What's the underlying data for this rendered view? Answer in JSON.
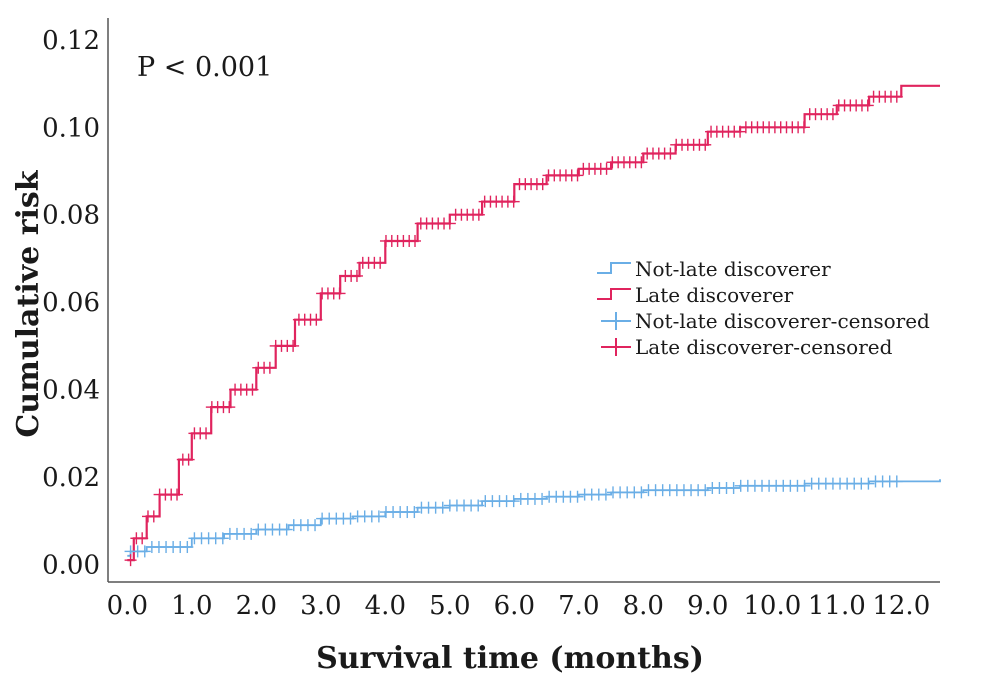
{
  "chart_data": {
    "type": "line",
    "annotation": "P < 0.001",
    "xlabel": "Survival time (months)",
    "ylabel": "Cumulative risk",
    "xlim": [
      -0.3,
      12.6
    ],
    "ylim": [
      -0.004,
      0.125
    ],
    "x_ticks": [
      0,
      1,
      2,
      3,
      4,
      5,
      6,
      7,
      8,
      9,
      10,
      11,
      12
    ],
    "x_tick_labels": [
      "0.0",
      "1.0",
      "2.0",
      "3.0",
      "4.0",
      "5.0",
      "6.0",
      "7.0",
      "8.0",
      "9.0",
      "10.0",
      "11.0",
      "12.0"
    ],
    "y_ticks": [
      0.0,
      0.02,
      0.04,
      0.06,
      0.08,
      0.1,
      0.12
    ],
    "y_tick_labels": [
      "0.00",
      "0.02",
      "0.04",
      "0.06",
      "0.08",
      "0.10",
      "0.12"
    ],
    "grid": false,
    "legend_position": "right",
    "legend": [
      {
        "label": "Not-late discoverer",
        "color": "#6aaee6",
        "marker": "step"
      },
      {
        "label": "Late discoverer",
        "color": "#e0245e",
        "marker": "step"
      },
      {
        "label": "Not-late discoverer-censored",
        "color": "#6aaee6",
        "marker": "plus"
      },
      {
        "label": "Late discoverer-censored",
        "color": "#e0245e",
        "marker": "plus"
      }
    ],
    "series": [
      {
        "name": "Not-late discoverer",
        "color": "#6aaee6",
        "x": [
          0.0,
          0.05,
          0.3,
          0.6,
          1.0,
          1.5,
          2.0,
          2.5,
          3.0,
          3.5,
          4.0,
          4.5,
          5.0,
          5.5,
          6.0,
          6.5,
          7.0,
          7.5,
          8.0,
          8.5,
          9.0,
          9.5,
          10.0,
          10.5,
          11.0,
          11.5,
          12.0,
          12.6
        ],
        "y": [
          0.002,
          0.003,
          0.004,
          0.004,
          0.006,
          0.007,
          0.008,
          0.009,
          0.0105,
          0.011,
          0.012,
          0.013,
          0.0135,
          0.0145,
          0.015,
          0.0155,
          0.016,
          0.0165,
          0.017,
          0.017,
          0.0175,
          0.018,
          0.018,
          0.0185,
          0.0185,
          0.019,
          0.019,
          0.0195
        ]
      },
      {
        "name": "Late discoverer",
        "color": "#e0245e",
        "x": [
          0.0,
          0.1,
          0.3,
          0.5,
          0.8,
          1.0,
          1.3,
          1.6,
          2.0,
          2.3,
          2.6,
          3.0,
          3.3,
          3.6,
          4.0,
          4.5,
          5.0,
          5.5,
          6.0,
          6.5,
          7.0,
          7.5,
          8.0,
          8.5,
          9.0,
          9.5,
          10.0,
          10.5,
          11.0,
          11.5,
          12.0,
          12.6
        ],
        "y": [
          0.001,
          0.006,
          0.011,
          0.016,
          0.024,
          0.03,
          0.036,
          0.04,
          0.045,
          0.05,
          0.056,
          0.062,
          0.066,
          0.069,
          0.074,
          0.078,
          0.08,
          0.083,
          0.087,
          0.089,
          0.0905,
          0.092,
          0.094,
          0.096,
          0.099,
          0.1,
          0.1,
          0.103,
          0.105,
          0.107,
          0.1095,
          0.1095
        ]
      }
    ]
  }
}
